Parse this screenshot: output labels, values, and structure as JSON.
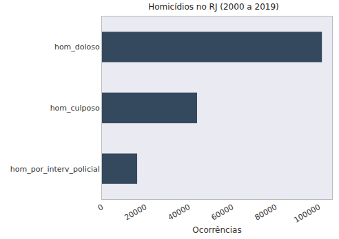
{
  "chart_data": {
    "type": "bar",
    "orientation": "horizontal",
    "title": "Homicídios no RJ (2000 a 2019)",
    "x_label": "Ocorrências",
    "categories": [
      "hom_doloso",
      "hom_culposo",
      "hom_por_interv_policial"
    ],
    "values": [
      101300,
      43800,
      16200
    ],
    "color": "#34495e",
    "xlim": [
      0,
      106000
    ],
    "xticks": [
      0,
      20000,
      40000,
      60000,
      80000,
      100000
    ],
    "grid": false
  }
}
